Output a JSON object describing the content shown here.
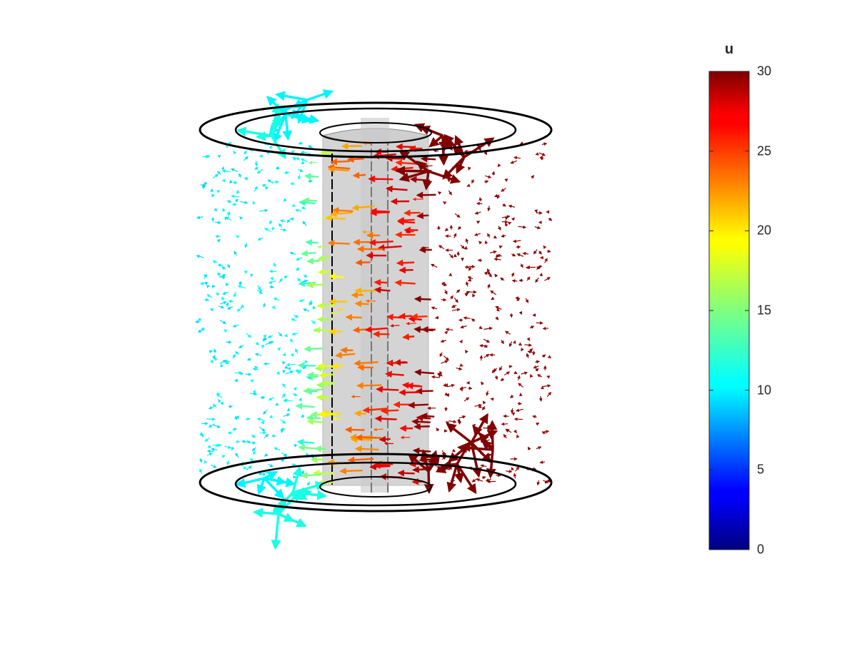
{
  "colorbar": {
    "title": "u",
    "min": 0,
    "max": 30,
    "ticks": [
      {
        "value": 0,
        "label": "0"
      },
      {
        "value": 5,
        "label": "5"
      },
      {
        "value": 10,
        "label": "10"
      },
      {
        "value": 15,
        "label": "15"
      },
      {
        "value": 20,
        "label": "20"
      },
      {
        "value": 25,
        "label": "25"
      },
      {
        "value": 30,
        "label": "30"
      }
    ],
    "colormap": "jet"
  },
  "scene": {
    "description_type": "3D cylinder with inner core and quiver field",
    "core_color": "#d4d4d4",
    "outline_color": "#000000"
  }
}
